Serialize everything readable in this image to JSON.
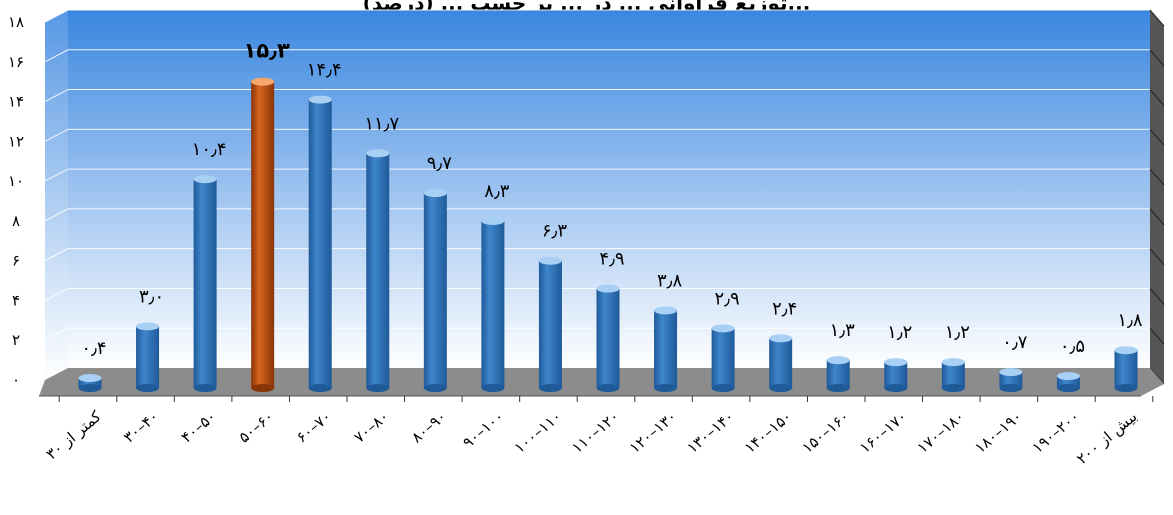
{
  "chart_data": {
    "type": "bar",
    "title": "...توزیع فراوانی ... در ... بر حسب ... (درصد)",
    "categories": [
      "کمتر از ۳۰",
      "۳۰–۴۰",
      "۴۰–۵۰",
      "۵۰–۶۰",
      "۶۰–۷۰",
      "۷۰–۸۰",
      "۸۰–۹۰",
      "۹۰–۱۰۰",
      "۱۰۰–۱۱۰",
      "۱۱۰–۱۲۰",
      "۱۲۰–۱۳۰",
      "۱۳۰–۱۴۰",
      "۱۴۰–۱۵۰",
      "۱۵۰–۱۶۰",
      "۱۶۰–۱۷۰",
      "۱۷۰–۱۸۰",
      "۱۸۰–۱۹۰",
      "۱۹۰–۲۰۰",
      "بیش از ۲۰۰"
    ],
    "values": [
      0.4,
      3.0,
      10.4,
      15.3,
      14.4,
      11.7,
      9.7,
      8.3,
      6.3,
      4.9,
      3.8,
      2.9,
      2.4,
      1.3,
      1.2,
      1.2,
      0.7,
      0.5,
      1.8
    ],
    "data_labels": [
      "۰٫۴",
      "۳٫۰",
      "۱۰٫۴",
      "۱۵٫۳",
      "۱۴٫۴",
      "۱۱٫۷",
      "۹٫۷",
      "۸٫۳",
      "۶٫۳",
      "۴٫۹",
      "۳٫۸",
      "۲٫۹",
      "۲٫۴",
      "۱٫۳",
      "۱٫۲",
      "۱٫۲",
      "۰٫۷",
      "۰٫۵",
      "۱٫۸"
    ],
    "y_ticks": [
      0,
      2,
      4,
      6,
      8,
      10,
      12,
      14,
      16,
      18
    ],
    "y_tick_labels": [
      "۰",
      "۲",
      "۴",
      "۶",
      "۸",
      "۱۰",
      "۱۲",
      "۱۴",
      "۱۶",
      "۱۸"
    ],
    "ylim": [
      0,
      18
    ],
    "highlight_index": 3,
    "grid": true,
    "colors": {
      "bar": "#3f86cc",
      "bar_dark": "#1f5a99",
      "bar_light": "#a8d0f5",
      "highlight": "#d9641f",
      "highlight_dark": "#8a3508",
      "highlight_light": "#f5a66a",
      "wall_top": "#3a86e0",
      "wall_bottom": "#ffffff",
      "floor": "#8c8c8c",
      "grid": "#ffffff"
    }
  }
}
